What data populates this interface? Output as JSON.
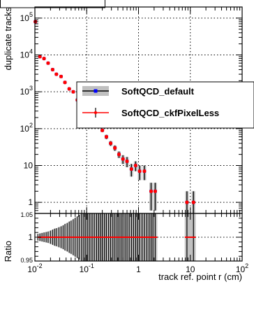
{
  "chart_data": [
    {
      "type": "scatter",
      "panel": "top",
      "xscale": "log",
      "yscale": "log",
      "xlim": [
        0.01,
        100
      ],
      "ylim": [
        0.5,
        200000
      ],
      "ylabel": "duplicate tracks",
      "grid": true,
      "legend_placement": "right",
      "y_tick_labels": [
        "1",
        "10",
        "10^2",
        "10^3",
        "10^4",
        "10^5"
      ],
      "series": [
        {
          "name": "SoftQCD_default",
          "color": "#0000ff",
          "band_color": "#c0c0c0",
          "points": [
            {
              "x": 0.0102,
              "y": 80000,
              "err": 0
            },
            {
              "x": 0.0125,
              "y": 9000,
              "err": 95
            },
            {
              "x": 0.015,
              "y": 8000,
              "err": 89
            },
            {
              "x": 0.018,
              "y": 6000,
              "err": 77
            },
            {
              "x": 0.022,
              "y": 4000,
              "err": 63
            },
            {
              "x": 0.026,
              "y": 3000,
              "err": 55
            },
            {
              "x": 0.032,
              "y": 2600,
              "err": 51
            },
            {
              "x": 0.038,
              "y": 1800,
              "err": 42
            },
            {
              "x": 0.046,
              "y": 1200,
              "err": 35
            },
            {
              "x": 0.055,
              "y": 1000,
              "err": 32
            },
            {
              "x": 0.066,
              "y": 600,
              "err": 24
            },
            {
              "x": 0.08,
              "y": 500,
              "err": 22
            },
            {
              "x": 0.096,
              "y": 380,
              "err": 19
            },
            {
              "x": 0.115,
              "y": 250,
              "err": 16
            },
            {
              "x": 0.14,
              "y": 200,
              "err": 14
            },
            {
              "x": 0.17,
              "y": 120,
              "err": 11
            },
            {
              "x": 0.2,
              "y": 90,
              "err": 9
            },
            {
              "x": 0.24,
              "y": 60,
              "err": 8
            },
            {
              "x": 0.29,
              "y": 40,
              "err": 6
            },
            {
              "x": 0.35,
              "y": 30,
              "err": 5
            },
            {
              "x": 0.42,
              "y": 20,
              "err": 4
            },
            {
              "x": 0.5,
              "y": 15,
              "err": 4
            },
            {
              "x": 0.6,
              "y": 13,
              "err": 4
            },
            {
              "x": 0.73,
              "y": 8,
              "err": 3
            },
            {
              "x": 0.88,
              "y": 10,
              "err": 3
            },
            {
              "x": 1.05,
              "y": 7,
              "err": 3
            },
            {
              "x": 1.3,
              "y": 7,
              "err": 3
            },
            {
              "x": 1.75,
              "y": 2,
              "err": 1.4
            },
            {
              "x": 2.1,
              "y": 2,
              "err": 1.4
            },
            {
              "x": 8.6,
              "y": 1,
              "err": 1
            },
            {
              "x": 11.5,
              "y": 1,
              "err": 1
            }
          ]
        },
        {
          "name": "SoftQCD_ckfPixelLess",
          "color": "#ff0000",
          "band_color": "#000000",
          "same_values_as": "SoftQCD_default"
        }
      ]
    },
    {
      "type": "line",
      "panel": "bottom",
      "xscale": "log",
      "xlim": [
        0.01,
        100
      ],
      "ylim": [
        0.95,
        1.05
      ],
      "xlabel": "track ref. point r (cm)",
      "ylabel": "Ratio",
      "grid": true,
      "x_tick_labels": [
        "10^-2",
        "10^-1",
        "1",
        "10",
        "10^2"
      ],
      "y_tick_labels": [
        "0.95",
        "1",
        "1.05"
      ],
      "ratio_value": 1,
      "ratio_x_range": [
        0.0113,
        2.3
      ],
      "ratio_x_range_2": [
        7.8,
        12.7
      ],
      "line_color": "#ff0000",
      "band_color": "#c0c0c0",
      "band_half_widths": [
        {
          "x": 0.0113,
          "w": 0.007
        },
        {
          "x": 0.0125,
          "w": 0.008
        },
        {
          "x": 0.0137,
          "w": 0.009
        },
        {
          "x": 0.015,
          "w": 0.01
        },
        {
          "x": 0.0165,
          "w": 0.011
        },
        {
          "x": 0.018,
          "w": 0.012
        },
        {
          "x": 0.02,
          "w": 0.014
        },
        {
          "x": 0.022,
          "w": 0.016
        },
        {
          "x": 0.024,
          "w": 0.018
        },
        {
          "x": 0.026,
          "w": 0.019
        },
        {
          "x": 0.029,
          "w": 0.021
        },
        {
          "x": 0.032,
          "w": 0.023
        },
        {
          "x": 0.035,
          "w": 0.025
        },
        {
          "x": 0.038,
          "w": 0.028
        },
        {
          "x": 0.042,
          "w": 0.03
        },
        {
          "x": 0.046,
          "w": 0.033
        },
        {
          "x": 0.05,
          "w": 0.035
        },
        {
          "x": 0.055,
          "w": 0.038
        },
        {
          "x": 0.06,
          "w": 0.041
        },
        {
          "x": 0.066,
          "w": 0.044
        },
        {
          "x": 0.072,
          "w": 0.047
        },
        {
          "x": 0.08,
          "w": 0.05
        },
        {
          "x": 2.3,
          "w": 0.05
        }
      ],
      "band_half_widths_2": [
        {
          "x": 7.8,
          "w": 0.05
        },
        {
          "x": 12.7,
          "w": 0.05
        }
      ],
      "error_bar_x": [
        0.08,
        0.088,
        0.096,
        0.105,
        0.115,
        0.127,
        0.14,
        0.155,
        0.17,
        0.185,
        0.2,
        0.22,
        0.24,
        0.265,
        0.29,
        0.32,
        0.35,
        0.385,
        0.42,
        0.46,
        0.5,
        0.55,
        0.6,
        0.66,
        0.73,
        0.8,
        0.88,
        0.96,
        1.05,
        1.17,
        1.3,
        1.45,
        1.6,
        1.75,
        1.9,
        2.1,
        8.6,
        11.5
      ]
    }
  ]
}
